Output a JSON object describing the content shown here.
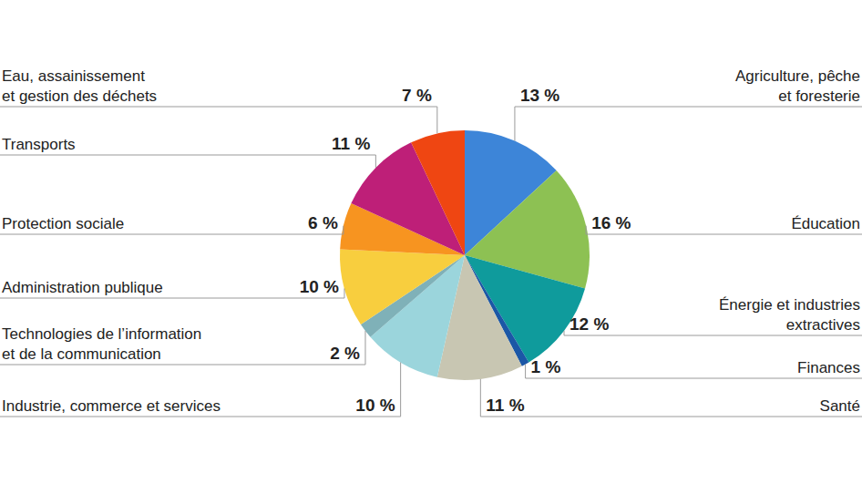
{
  "chart_data": {
    "type": "pie",
    "categories": [
      "Agriculture, pêche\net foresterie",
      "Éducation",
      "Énergie et industries\nextractives",
      "Finances",
      "Santé",
      "Industrie, commerce et services",
      "Technologies de l’information\net de la communication",
      "Administration publique",
      "Protection sociale",
      "Transports",
      "Eau, assainissement\net gestion des déchets"
    ],
    "values": [
      13,
      16,
      12,
      1,
      11,
      10,
      2,
      10,
      6,
      11,
      7
    ],
    "value_labels": [
      "13 %",
      "16 %",
      "12 %",
      "1 %",
      "11 %",
      "10 %",
      "2 %",
      "10 %",
      "6 %",
      "11 %",
      "7 %"
    ],
    "colors": [
      "#3d85d8",
      "#8dc153",
      "#0f9b9c",
      "#1b57a6",
      "#c8c6b2",
      "#9bd5dc",
      "#7fb1b8",
      "#f8ce3e",
      "#f79420",
      "#be1f78",
      "#ef4612"
    ],
    "data_labels": true
  }
}
